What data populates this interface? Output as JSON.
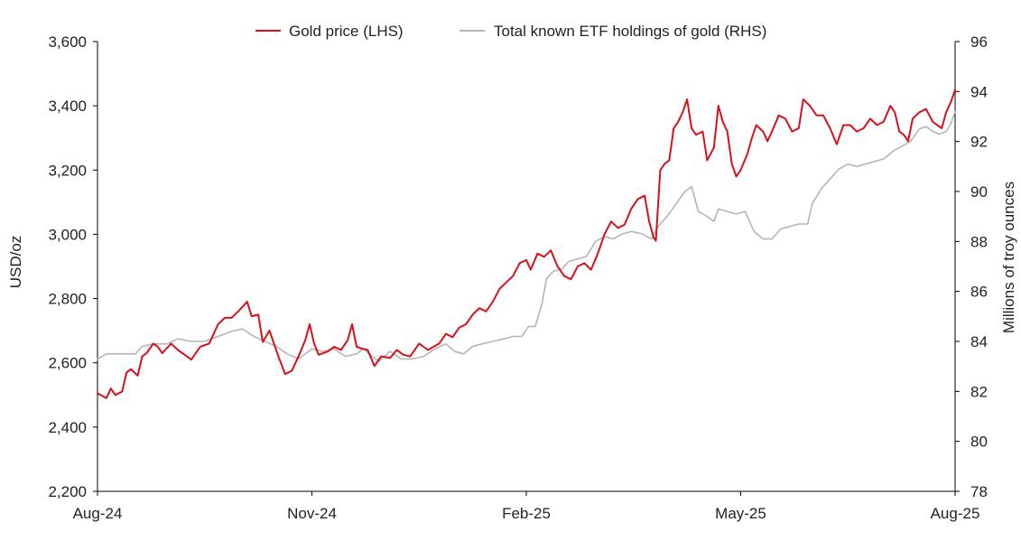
{
  "chart_data": {
    "type": "line",
    "x_axis": {
      "tick_labels": [
        "Aug-24",
        "Nov-24",
        "Feb-25",
        "May-25",
        "Aug-25"
      ],
      "range": [
        "2024-08-01",
        "2025-08-20"
      ]
    },
    "y_left": {
      "label": "USD/oz",
      "range": [
        2200,
        3600
      ],
      "ticks": [
        2200,
        2400,
        2600,
        2800,
        3000,
        3200,
        3400,
        3600
      ],
      "tick_labels": [
        "2,200",
        "2,400",
        "2,600",
        "2,800",
        "3,000",
        "3,200",
        "3,400",
        "3,600"
      ]
    },
    "y_right": {
      "label": "Millions of troy ounces",
      "range": [
        78,
        96
      ],
      "ticks": [
        78,
        80,
        82,
        84,
        86,
        88,
        90,
        92,
        94,
        96
      ],
      "tick_labels": [
        "78",
        "80",
        "82",
        "84",
        "86",
        "88",
        "90",
        "92",
        "94",
        "96"
      ]
    },
    "grid": false,
    "legend_position": "top-center",
    "series": [
      {
        "name": "Gold price (LHS)",
        "axis": "left",
        "color": "#d7111b",
        "points": [
          [
            "2024-08-01",
            2505
          ],
          [
            "2024-08-05",
            2490
          ],
          [
            "2024-08-07",
            2520
          ],
          [
            "2024-08-09",
            2500
          ],
          [
            "2024-08-12",
            2510
          ],
          [
            "2024-08-14",
            2570
          ],
          [
            "2024-08-16",
            2580
          ],
          [
            "2024-08-19",
            2560
          ],
          [
            "2024-08-21",
            2620
          ],
          [
            "2024-08-23",
            2630
          ],
          [
            "2024-08-26",
            2660
          ],
          [
            "2024-08-28",
            2650
          ],
          [
            "2024-08-30",
            2630
          ],
          [
            "2024-09-03",
            2660
          ],
          [
            "2024-09-06",
            2640
          ],
          [
            "2024-09-10",
            2620
          ],
          [
            "2024-09-12",
            2610
          ],
          [
            "2024-09-16",
            2650
          ],
          [
            "2024-09-20",
            2660
          ],
          [
            "2024-09-24",
            2720
          ],
          [
            "2024-09-27",
            2740
          ],
          [
            "2024-09-30",
            2740
          ],
          [
            "2024-10-03",
            2760
          ],
          [
            "2024-10-07",
            2790
          ],
          [
            "2024-10-09",
            2745
          ],
          [
            "2024-10-12",
            2750
          ],
          [
            "2024-10-14",
            2665
          ],
          [
            "2024-10-17",
            2700
          ],
          [
            "2024-10-21",
            2620
          ],
          [
            "2024-10-24",
            2565
          ],
          [
            "2024-10-27",
            2575
          ],
          [
            "2024-10-30",
            2620
          ],
          [
            "2024-11-02",
            2670
          ],
          [
            "2024-11-04",
            2720
          ],
          [
            "2024-11-06",
            2660
          ],
          [
            "2024-11-08",
            2625
          ],
          [
            "2024-11-12",
            2635
          ],
          [
            "2024-11-15",
            2650
          ],
          [
            "2024-11-18",
            2640
          ],
          [
            "2024-11-21",
            2670
          ],
          [
            "2024-11-23",
            2720
          ],
          [
            "2024-11-25",
            2650
          ],
          [
            "2024-11-27",
            2645
          ],
          [
            "2024-11-30",
            2640
          ],
          [
            "2024-12-03",
            2590
          ],
          [
            "2024-12-06",
            2620
          ],
          [
            "2024-12-10",
            2615
          ],
          [
            "2024-12-13",
            2640
          ],
          [
            "2024-12-16",
            2625
          ],
          [
            "2024-12-19",
            2620
          ],
          [
            "2024-12-23",
            2660
          ],
          [
            "2024-12-27",
            2640
          ],
          [
            "2025-01-01",
            2660
          ],
          [
            "2025-01-04",
            2690
          ],
          [
            "2025-01-07",
            2680
          ],
          [
            "2025-01-10",
            2710
          ],
          [
            "2025-01-13",
            2720
          ],
          [
            "2025-01-16",
            2750
          ],
          [
            "2025-01-19",
            2770
          ],
          [
            "2025-01-22",
            2760
          ],
          [
            "2025-01-25",
            2790
          ],
          [
            "2025-01-28",
            2830
          ],
          [
            "2025-01-31",
            2850
          ],
          [
            "2025-02-03",
            2870
          ],
          [
            "2025-02-06",
            2910
          ],
          [
            "2025-02-09",
            2920
          ],
          [
            "2025-02-11",
            2890
          ],
          [
            "2025-02-14",
            2940
          ],
          [
            "2025-02-17",
            2930
          ],
          [
            "2025-02-20",
            2950
          ],
          [
            "2025-02-23",
            2900
          ],
          [
            "2025-02-26",
            2870
          ],
          [
            "2025-03-01",
            2860
          ],
          [
            "2025-03-04",
            2900
          ],
          [
            "2025-03-07",
            2910
          ],
          [
            "2025-03-10",
            2890
          ],
          [
            "2025-03-13",
            2940
          ],
          [
            "2025-03-16",
            3000
          ],
          [
            "2025-03-19",
            3040
          ],
          [
            "2025-03-22",
            3020
          ],
          [
            "2025-03-25",
            3030
          ],
          [
            "2025-03-28",
            3080
          ],
          [
            "2025-03-31",
            3110
          ],
          [
            "2025-04-03",
            3120
          ],
          [
            "2025-04-05",
            3040
          ],
          [
            "2025-04-07",
            2990
          ],
          [
            "2025-04-08",
            2980
          ],
          [
            "2025-04-10",
            3200
          ],
          [
            "2025-04-12",
            3220
          ],
          [
            "2025-04-14",
            3230
          ],
          [
            "2025-04-16",
            3330
          ],
          [
            "2025-04-18",
            3350
          ],
          [
            "2025-04-20",
            3380
          ],
          [
            "2025-04-22",
            3420
          ],
          [
            "2025-04-24",
            3330
          ],
          [
            "2025-04-26",
            3310
          ],
          [
            "2025-04-29",
            3320
          ],
          [
            "2025-05-01",
            3230
          ],
          [
            "2025-05-04",
            3270
          ],
          [
            "2025-05-06",
            3400
          ],
          [
            "2025-05-08",
            3350
          ],
          [
            "2025-05-10",
            3320
          ],
          [
            "2025-05-12",
            3220
          ],
          [
            "2025-05-14",
            3180
          ],
          [
            "2025-05-16",
            3200
          ],
          [
            "2025-05-19",
            3250
          ],
          [
            "2025-05-21",
            3300
          ],
          [
            "2025-05-23",
            3340
          ],
          [
            "2025-05-26",
            3320
          ],
          [
            "2025-05-28",
            3290
          ],
          [
            "2025-05-30",
            3320
          ],
          [
            "2025-06-02",
            3370
          ],
          [
            "2025-06-05",
            3360
          ],
          [
            "2025-06-08",
            3320
          ],
          [
            "2025-06-11",
            3330
          ],
          [
            "2025-06-13",
            3420
          ],
          [
            "2025-06-16",
            3400
          ],
          [
            "2025-06-19",
            3370
          ],
          [
            "2025-06-22",
            3370
          ],
          [
            "2025-06-25",
            3330
          ],
          [
            "2025-06-28",
            3280
          ],
          [
            "2025-07-01",
            3340
          ],
          [
            "2025-07-04",
            3340
          ],
          [
            "2025-07-07",
            3320
          ],
          [
            "2025-07-10",
            3330
          ],
          [
            "2025-07-13",
            3360
          ],
          [
            "2025-07-16",
            3340
          ],
          [
            "2025-07-19",
            3350
          ],
          [
            "2025-07-22",
            3400
          ],
          [
            "2025-07-24",
            3380
          ],
          [
            "2025-07-26",
            3320
          ],
          [
            "2025-07-28",
            3310
          ],
          [
            "2025-07-30",
            3290
          ],
          [
            "2025-08-01",
            3360
          ],
          [
            "2025-08-04",
            3380
          ],
          [
            "2025-08-07",
            3390
          ],
          [
            "2025-08-10",
            3350
          ],
          [
            "2025-08-12",
            3340
          ],
          [
            "2025-08-14",
            3330
          ],
          [
            "2025-08-16",
            3380
          ],
          [
            "2025-08-18",
            3410
          ],
          [
            "2025-08-20",
            3450
          ]
        ]
      },
      {
        "name": "Total known ETF holdings of gold (RHS)",
        "axis": "right",
        "color": "#b5b5b5",
        "points": [
          [
            "2024-08-01",
            83.3
          ],
          [
            "2024-08-05",
            83.5
          ],
          [
            "2024-08-12",
            83.5
          ],
          [
            "2024-08-18",
            83.5
          ],
          [
            "2024-08-21",
            83.8
          ],
          [
            "2024-08-26",
            83.9
          ],
          [
            "2024-09-01",
            83.9
          ],
          [
            "2024-09-06",
            84.1
          ],
          [
            "2024-09-12",
            84.0
          ],
          [
            "2024-09-18",
            84.0
          ],
          [
            "2024-09-24",
            84.2
          ],
          [
            "2024-09-30",
            84.4
          ],
          [
            "2024-10-05",
            84.5
          ],
          [
            "2024-10-10",
            84.2
          ],
          [
            "2024-10-15",
            84.0
          ],
          [
            "2024-10-20",
            83.8
          ],
          [
            "2024-10-25",
            83.5
          ],
          [
            "2024-10-30",
            83.3
          ],
          [
            "2024-11-05",
            83.7
          ],
          [
            "2024-11-10",
            83.6
          ],
          [
            "2024-11-15",
            83.7
          ],
          [
            "2024-11-20",
            83.4
          ],
          [
            "2024-11-25",
            83.5
          ],
          [
            "2024-11-28",
            83.7
          ],
          [
            "2024-12-02",
            83.4
          ],
          [
            "2024-12-05",
            83.2
          ],
          [
            "2024-12-10",
            83.6
          ],
          [
            "2024-12-15",
            83.3
          ],
          [
            "2024-12-20",
            83.3
          ],
          [
            "2024-12-25",
            83.4
          ],
          [
            "2024-12-30",
            83.7
          ],
          [
            "2025-01-04",
            83.9
          ],
          [
            "2025-01-08",
            83.6
          ],
          [
            "2025-01-12",
            83.5
          ],
          [
            "2025-01-16",
            83.8
          ],
          [
            "2025-01-20",
            83.9
          ],
          [
            "2025-01-25",
            84.0
          ],
          [
            "2025-01-30",
            84.1
          ],
          [
            "2025-02-03",
            84.2
          ],
          [
            "2025-02-07",
            84.2
          ],
          [
            "2025-02-10",
            84.6
          ],
          [
            "2025-02-13",
            84.6
          ],
          [
            "2025-02-16",
            85.5
          ],
          [
            "2025-02-18",
            86.5
          ],
          [
            "2025-02-21",
            86.8
          ],
          [
            "2025-02-25",
            86.9
          ],
          [
            "2025-02-28",
            87.2
          ],
          [
            "2025-03-04",
            87.3
          ],
          [
            "2025-03-08",
            87.4
          ],
          [
            "2025-03-12",
            88.0
          ],
          [
            "2025-03-16",
            88.2
          ],
          [
            "2025-03-20",
            88.1
          ],
          [
            "2025-03-24",
            88.3
          ],
          [
            "2025-03-28",
            88.4
          ],
          [
            "2025-04-02",
            88.3
          ],
          [
            "2025-04-06",
            88.1
          ],
          [
            "2025-04-09",
            88.6
          ],
          [
            "2025-04-13",
            89.0
          ],
          [
            "2025-04-17",
            89.5
          ],
          [
            "2025-04-21",
            90.0
          ],
          [
            "2025-04-24",
            90.2
          ],
          [
            "2025-04-27",
            89.2
          ],
          [
            "2025-05-01",
            89.0
          ],
          [
            "2025-05-04",
            88.8
          ],
          [
            "2025-05-06",
            89.3
          ],
          [
            "2025-05-10",
            89.2
          ],
          [
            "2025-05-14",
            89.1
          ],
          [
            "2025-05-18",
            89.2
          ],
          [
            "2025-05-22",
            88.4
          ],
          [
            "2025-05-26",
            88.1
          ],
          [
            "2025-05-30",
            88.1
          ],
          [
            "2025-06-03",
            88.5
          ],
          [
            "2025-06-07",
            88.6
          ],
          [
            "2025-06-11",
            88.7
          ],
          [
            "2025-06-15",
            88.7
          ],
          [
            "2025-06-17",
            89.5
          ],
          [
            "2025-06-21",
            90.1
          ],
          [
            "2025-06-25",
            90.5
          ],
          [
            "2025-06-29",
            90.9
          ],
          [
            "2025-07-03",
            91.1
          ],
          [
            "2025-07-07",
            91.0
          ],
          [
            "2025-07-11",
            91.1
          ],
          [
            "2025-07-15",
            91.2
          ],
          [
            "2025-07-19",
            91.3
          ],
          [
            "2025-07-23",
            91.6
          ],
          [
            "2025-07-27",
            91.8
          ],
          [
            "2025-07-31",
            92.0
          ],
          [
            "2025-08-04",
            92.5
          ],
          [
            "2025-08-07",
            92.6
          ],
          [
            "2025-08-10",
            92.4
          ],
          [
            "2025-08-13",
            92.3
          ],
          [
            "2025-08-16",
            92.4
          ],
          [
            "2025-08-18",
            92.7
          ],
          [
            "2025-08-20",
            93.2
          ]
        ]
      }
    ]
  }
}
